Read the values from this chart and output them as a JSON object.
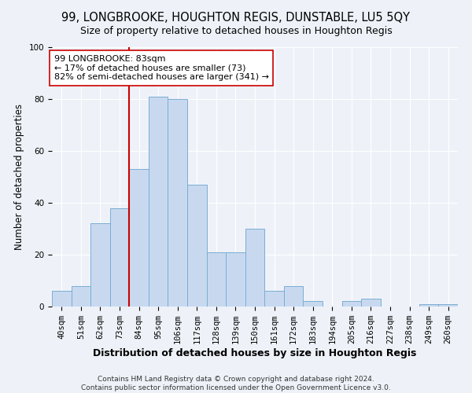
{
  "title": "99, LONGBROOKE, HOUGHTON REGIS, DUNSTABLE, LU5 5QY",
  "subtitle": "Size of property relative to detached houses in Houghton Regis",
  "xlabel": "Distribution of detached houses by size in Houghton Regis",
  "ylabel": "Number of detached properties",
  "bar_labels": [
    "40sqm",
    "51sqm",
    "62sqm",
    "73sqm",
    "84sqm",
    "95sqm",
    "106sqm",
    "117sqm",
    "128sqm",
    "139sqm",
    "150sqm",
    "161sqm",
    "172sqm",
    "183sqm",
    "194sqm",
    "205sqm",
    "216sqm",
    "227sqm",
    "238sqm",
    "249sqm",
    "260sqm"
  ],
  "bar_values": [
    6,
    8,
    32,
    38,
    53,
    81,
    80,
    47,
    21,
    21,
    30,
    6,
    8,
    2,
    0,
    2,
    3,
    0,
    0,
    1,
    1
  ],
  "bar_color": "#c8d9ef",
  "bar_edge_color": "#7aadd4",
  "vline_x_bar_idx": 4,
  "vline_color": "#cc0000",
  "annotation_title": "99 LONGBROOKE: 83sqm",
  "annotation_line1": "← 17% of detached houses are smaller (73)",
  "annotation_line2": "82% of semi-detached houses are larger (341) →",
  "annotation_box_color": "#ffffff",
  "annotation_box_edge": "#cc0000",
  "ylim": [
    0,
    100
  ],
  "title_fontsize": 10.5,
  "subtitle_fontsize": 9,
  "xlabel_fontsize": 9,
  "ylabel_fontsize": 8.5,
  "tick_fontsize": 7.5,
  "annotation_fontsize": 8,
  "footer_line1": "Contains HM Land Registry data © Crown copyright and database right 2024.",
  "footer_line2": "Contains public sector information licensed under the Open Government Licence v3.0.",
  "background_color": "#eef2f8",
  "plot_background_color": "#eef2f8",
  "grid_color": "#ffffff",
  "footer_fontsize": 6.5
}
